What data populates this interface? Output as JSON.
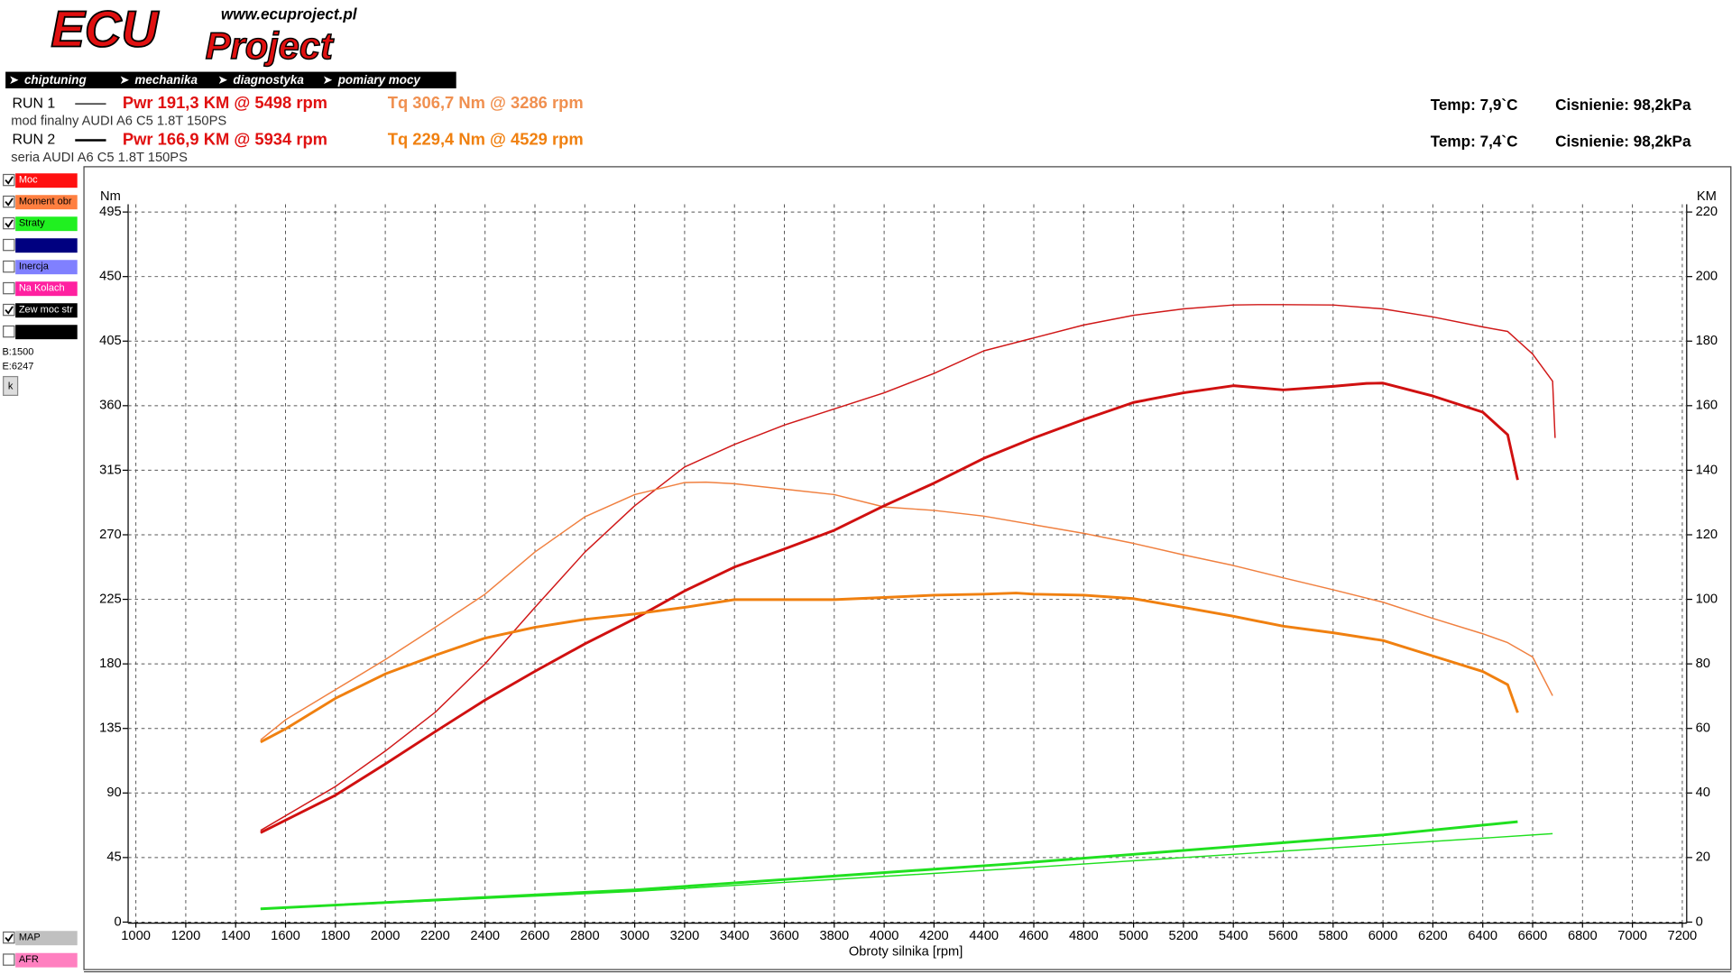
{
  "header": {
    "logo_main": "ECU",
    "logo_sub": "Project",
    "url": "www.ecuproject.pl",
    "nav": [
      "chiptuning",
      "mechanika",
      "diagnostyka",
      "pomiary mocy"
    ]
  },
  "runs": [
    {
      "label": "RUN 1",
      "description": "mod finalny AUDI A6 C5 1.8T 150PS",
      "power": "Pwr  191,3 KM @ 5498 rpm",
      "torque": "Tq 306,7 Nm @ 3286 rpm",
      "temp": "Temp: 7,9`C",
      "pressure": "Cisnienie: 98,2kPa"
    },
    {
      "label": "RUN 2",
      "description": "seria AUDI A6 C5 1.8T 150PS",
      "power": "Pwr  166,9 KM @ 5934 rpm",
      "torque": "Tq 229,4 Nm @ 4529 rpm",
      "temp": "Temp: 7,4`C",
      "pressure": "Cisnienie: 98,2kPa"
    }
  ],
  "panel": {
    "toggles": [
      {
        "label": "Moc",
        "color": "#ff1010",
        "checked": true
      },
      {
        "label": "Moment obr",
        "color": "#ff7f40",
        "checked": true
      },
      {
        "label": "Straty",
        "color": "#20f020",
        "checked": true
      },
      {
        "label": null,
        "color": "#000080",
        "checked": false
      },
      {
        "label": "Inercja",
        "color": "#8080ff",
        "checked": false
      },
      {
        "label": "Na Kolach",
        "color": "#ff20a0",
        "checked": false
      },
      {
        "label": "Zew moc str",
        "color": "#000000",
        "checked": true
      },
      {
        "label": null,
        "color": "#000000",
        "checked": false
      }
    ],
    "begin": "B:1500",
    "end": "E:6247",
    "button": "k",
    "bottom_toggles": [
      {
        "label": "MAP",
        "color": "#c0c0c0",
        "checked": true
      },
      {
        "label": "AFR",
        "color": "#ff80c0",
        "checked": false
      }
    ]
  },
  "chart_data": {
    "type": "line",
    "x_label": "Obroty silnika [rpm]",
    "y_label": "Nm",
    "y2_label": "KM",
    "xlim": [
      1000,
      7200
    ],
    "xticks": [
      1000,
      1200,
      1400,
      1600,
      1800,
      2000,
      2200,
      2400,
      2600,
      2800,
      3000,
      3200,
      3400,
      3600,
      3800,
      4000,
      4200,
      4400,
      4600,
      4800,
      5000,
      5200,
      5400,
      5600,
      5800,
      6000,
      6200,
      6400,
      6600,
      6800,
      7000,
      7200
    ],
    "ylim": [
      0,
      495
    ],
    "yticks": [
      0,
      45,
      90,
      135,
      180,
      225,
      270,
      315,
      360,
      405,
      450,
      495
    ],
    "y2lim": [
      0,
      220
    ],
    "y2ticks": [
      0,
      20,
      40,
      60,
      80,
      100,
      120,
      140,
      160,
      180,
      200,
      220
    ],
    "grid": true,
    "runs": [
      {
        "series": [
          {
            "color": "#d01818",
            "axis": "y2",
            "x": [
              1500,
              1800,
              2000,
              2200,
              2400,
              2600,
              2800,
              3000,
              3200,
              3400,
              3600,
              3800,
              4000,
              4200,
              4400,
              4600,
              4800,
              5000,
              5200,
              5400,
              5498,
              5600,
              5800,
              6000,
              6200,
              6400,
              6500,
              6600,
              6680,
              6690
            ],
            "values": [
              28.4,
              42,
              53,
              65,
              80,
              97.5,
              114.6,
              129,
              141,
              148,
              154,
              159,
              164,
              170,
              177,
              181,
              185,
              188,
              190,
              191.2,
              191.3,
              191.3,
              191.2,
              190,
              187.5,
              184.4,
              183,
              176,
              167.6,
              150
            ]
          },
          {
            "color": "#f08040",
            "axis": "y",
            "x": [
              1500,
              1600,
              1800,
              2000,
              2200,
              2400,
              2600,
              2800,
              3000,
              3200,
              3286,
              3400,
              3600,
              3800,
              4000,
              4200,
              4400,
              4600,
              4800,
              5000,
              5200,
              5400,
              5600,
              5800,
              6000,
              6200,
              6400,
              6500,
              6600,
              6680
            ],
            "values": [
              127,
              141,
              162,
              183,
              205.5,
              228.6,
              258,
              282.5,
              298,
              306.4,
              306.7,
              305.6,
              301.8,
              298,
              289.4,
              287,
              283,
              277,
              271,
              264,
              256,
              248.6,
              240,
              231.7,
              223,
              211.7,
              201,
              194.8,
              184.8,
              157.8
            ]
          },
          {
            "color": "#20e020",
            "axis": "y2",
            "x": [
              1500,
              3000,
              4500,
              6000,
              6680
            ],
            "values": [
              4.1,
              9.5,
              16.5,
              24,
              27.4
            ]
          }
        ]
      },
      {
        "series": [
          {
            "color": "#d01010",
            "axis": "y2",
            "x": [
              1500,
              1800,
              2000,
              2200,
              2400,
              2600,
              2800,
              3000,
              3200,
              3400,
              3600,
              3800,
              4000,
              4200,
              4400,
              4600,
              4800,
              5000,
              5200,
              5400,
              5600,
              5800,
              5934,
              6000,
              6200,
              6400,
              6500,
              6540
            ],
            "values": [
              27.7,
              39.3,
              49,
              59,
              68.8,
              77.7,
              86.2,
              94,
              102.6,
              110,
              115.6,
              121.4,
              129,
              136,
              143.7,
              150,
              155.7,
              161,
              164,
              166.2,
              164.9,
              166,
              166.9,
              167,
              163,
              158,
              151,
              137
            ]
          },
          {
            "color": "#f08010",
            "axis": "y",
            "x": [
              1500,
              1600,
              1800,
              2000,
              2200,
              2400,
              2600,
              2800,
              3000,
              3200,
              3400,
              3600,
              3800,
              4000,
              4200,
              4400,
              4529,
              4600,
              4800,
              5000,
              5200,
              5400,
              5600,
              5800,
              6000,
              6200,
              6400,
              6500,
              6540
            ],
            "values": [
              125.5,
              134.7,
              156,
              173,
              186,
              198,
              205.5,
              211,
              214.8,
              219.4,
              224.8,
              224.8,
              224.8,
              226.3,
              227.9,
              228.6,
              229.4,
              228.6,
              227.9,
              225.5,
              219.4,
              213.2,
              206.3,
              201.7,
              196.3,
              185.5,
              174.7,
              165.5,
              146
            ]
          },
          {
            "color": "#20e020",
            "axis": "y2",
            "x": [
              1500,
              3000,
              4500,
              6000,
              6540
            ],
            "values": [
              4.1,
              10,
              18,
              27,
              31.1
            ]
          }
        ]
      }
    ]
  }
}
